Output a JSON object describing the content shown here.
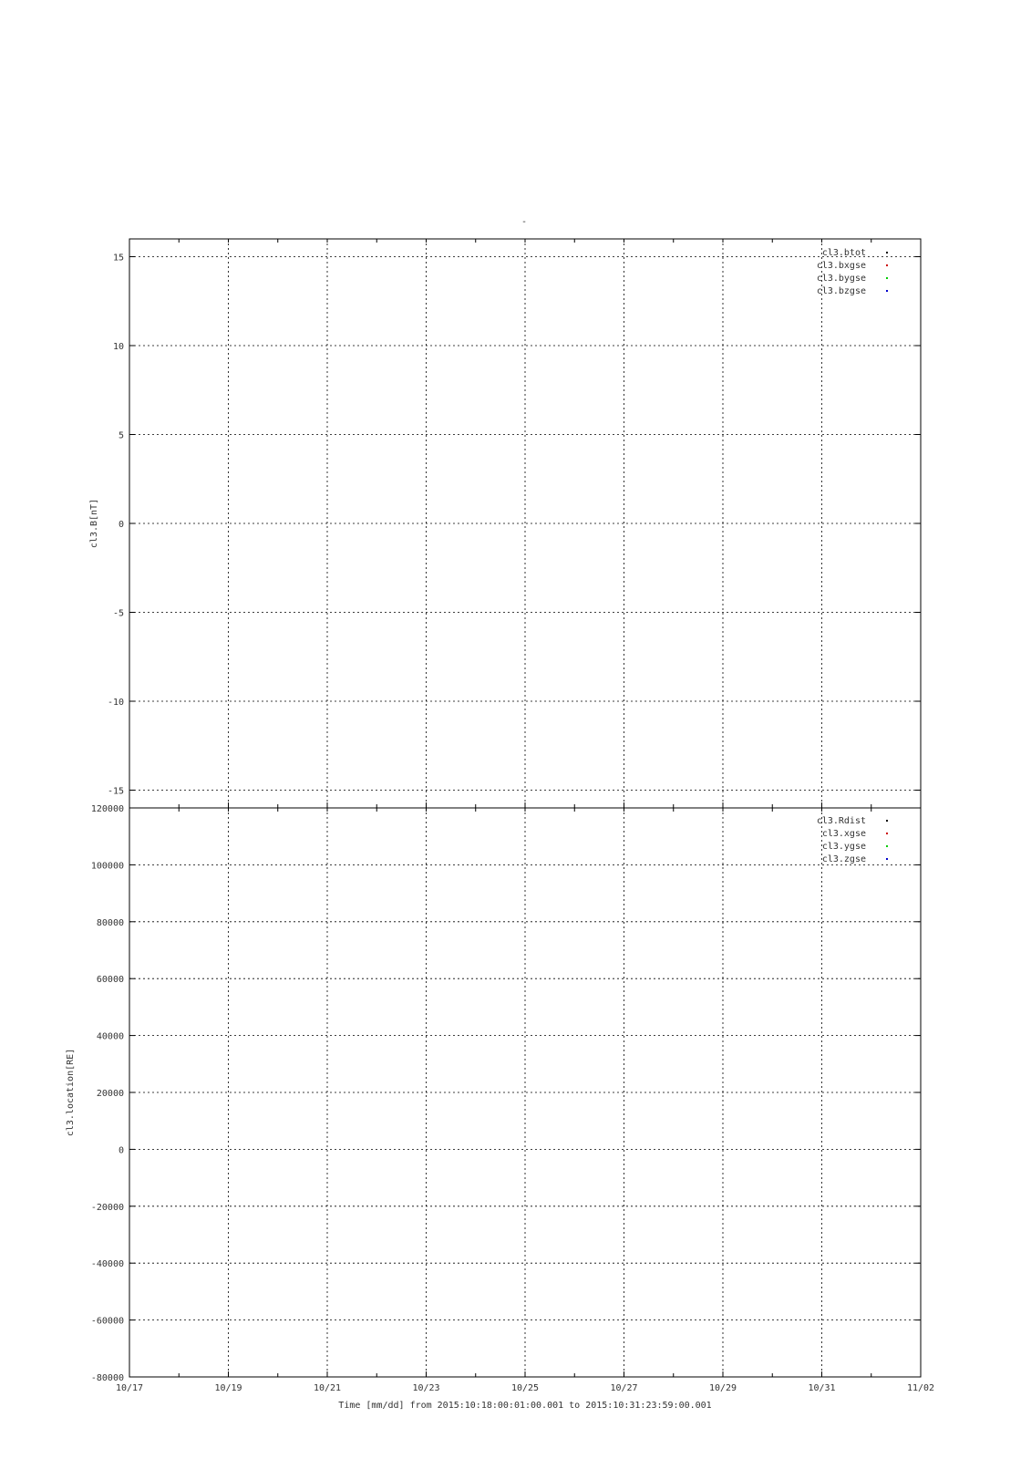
{
  "figure": {
    "top_title": "-",
    "xlabel": "Time [mm/dd]  from 2015:10:18:00:01:00.001  to  2015:10:31:23:59:00.001",
    "x_ticks": [
      "10/17",
      "10/19",
      "10/21",
      "10/23",
      "10/25",
      "10/27",
      "10/29",
      "10/31",
      "11/02"
    ]
  },
  "chart_data": [
    {
      "type": "scatter",
      "title": "",
      "xlabel": "",
      "ylabel": "cl3.B[nT]",
      "xlim": [
        "2015-10-17",
        "2015-11-02"
      ],
      "ylim": [
        -16,
        16
      ],
      "yticks": [
        -15,
        -10,
        -5,
        0,
        5,
        10,
        15
      ],
      "grid": true,
      "legend_position": "top-right",
      "series": [
        {
          "name": "cl3.btot",
          "color": "#000000",
          "x": [],
          "y": []
        },
        {
          "name": "cl3.bxgse",
          "color": "#cc0000",
          "x": [],
          "y": []
        },
        {
          "name": "cl3.bygse",
          "color": "#00cc00",
          "x": [],
          "y": []
        },
        {
          "name": "cl3.bzgse",
          "color": "#0000cc",
          "x": [],
          "y": []
        }
      ]
    },
    {
      "type": "line",
      "title": "",
      "xlabel": "Time [mm/dd]",
      "ylabel": "cl3.location[RE]",
      "xlim": [
        "2015-10-17",
        "2015-11-02"
      ],
      "ylim": [
        -80000,
        120000
      ],
      "yticks": [
        -80000,
        -60000,
        -40000,
        -20000,
        0,
        20000,
        40000,
        60000,
        80000,
        100000,
        120000
      ],
      "grid": true,
      "legend_position": "top-right",
      "series": [
        {
          "name": "cl3.Rdist",
          "color": "#000000",
          "x": [],
          "y": []
        },
        {
          "name": "cl3.xgse",
          "color": "#cc0000",
          "x": [],
          "y": []
        },
        {
          "name": "cl3.ygse",
          "color": "#00cc00",
          "x": [],
          "y": []
        },
        {
          "name": "cl3.zgse",
          "color": "#0000cc",
          "x": [],
          "y": []
        }
      ]
    }
  ]
}
